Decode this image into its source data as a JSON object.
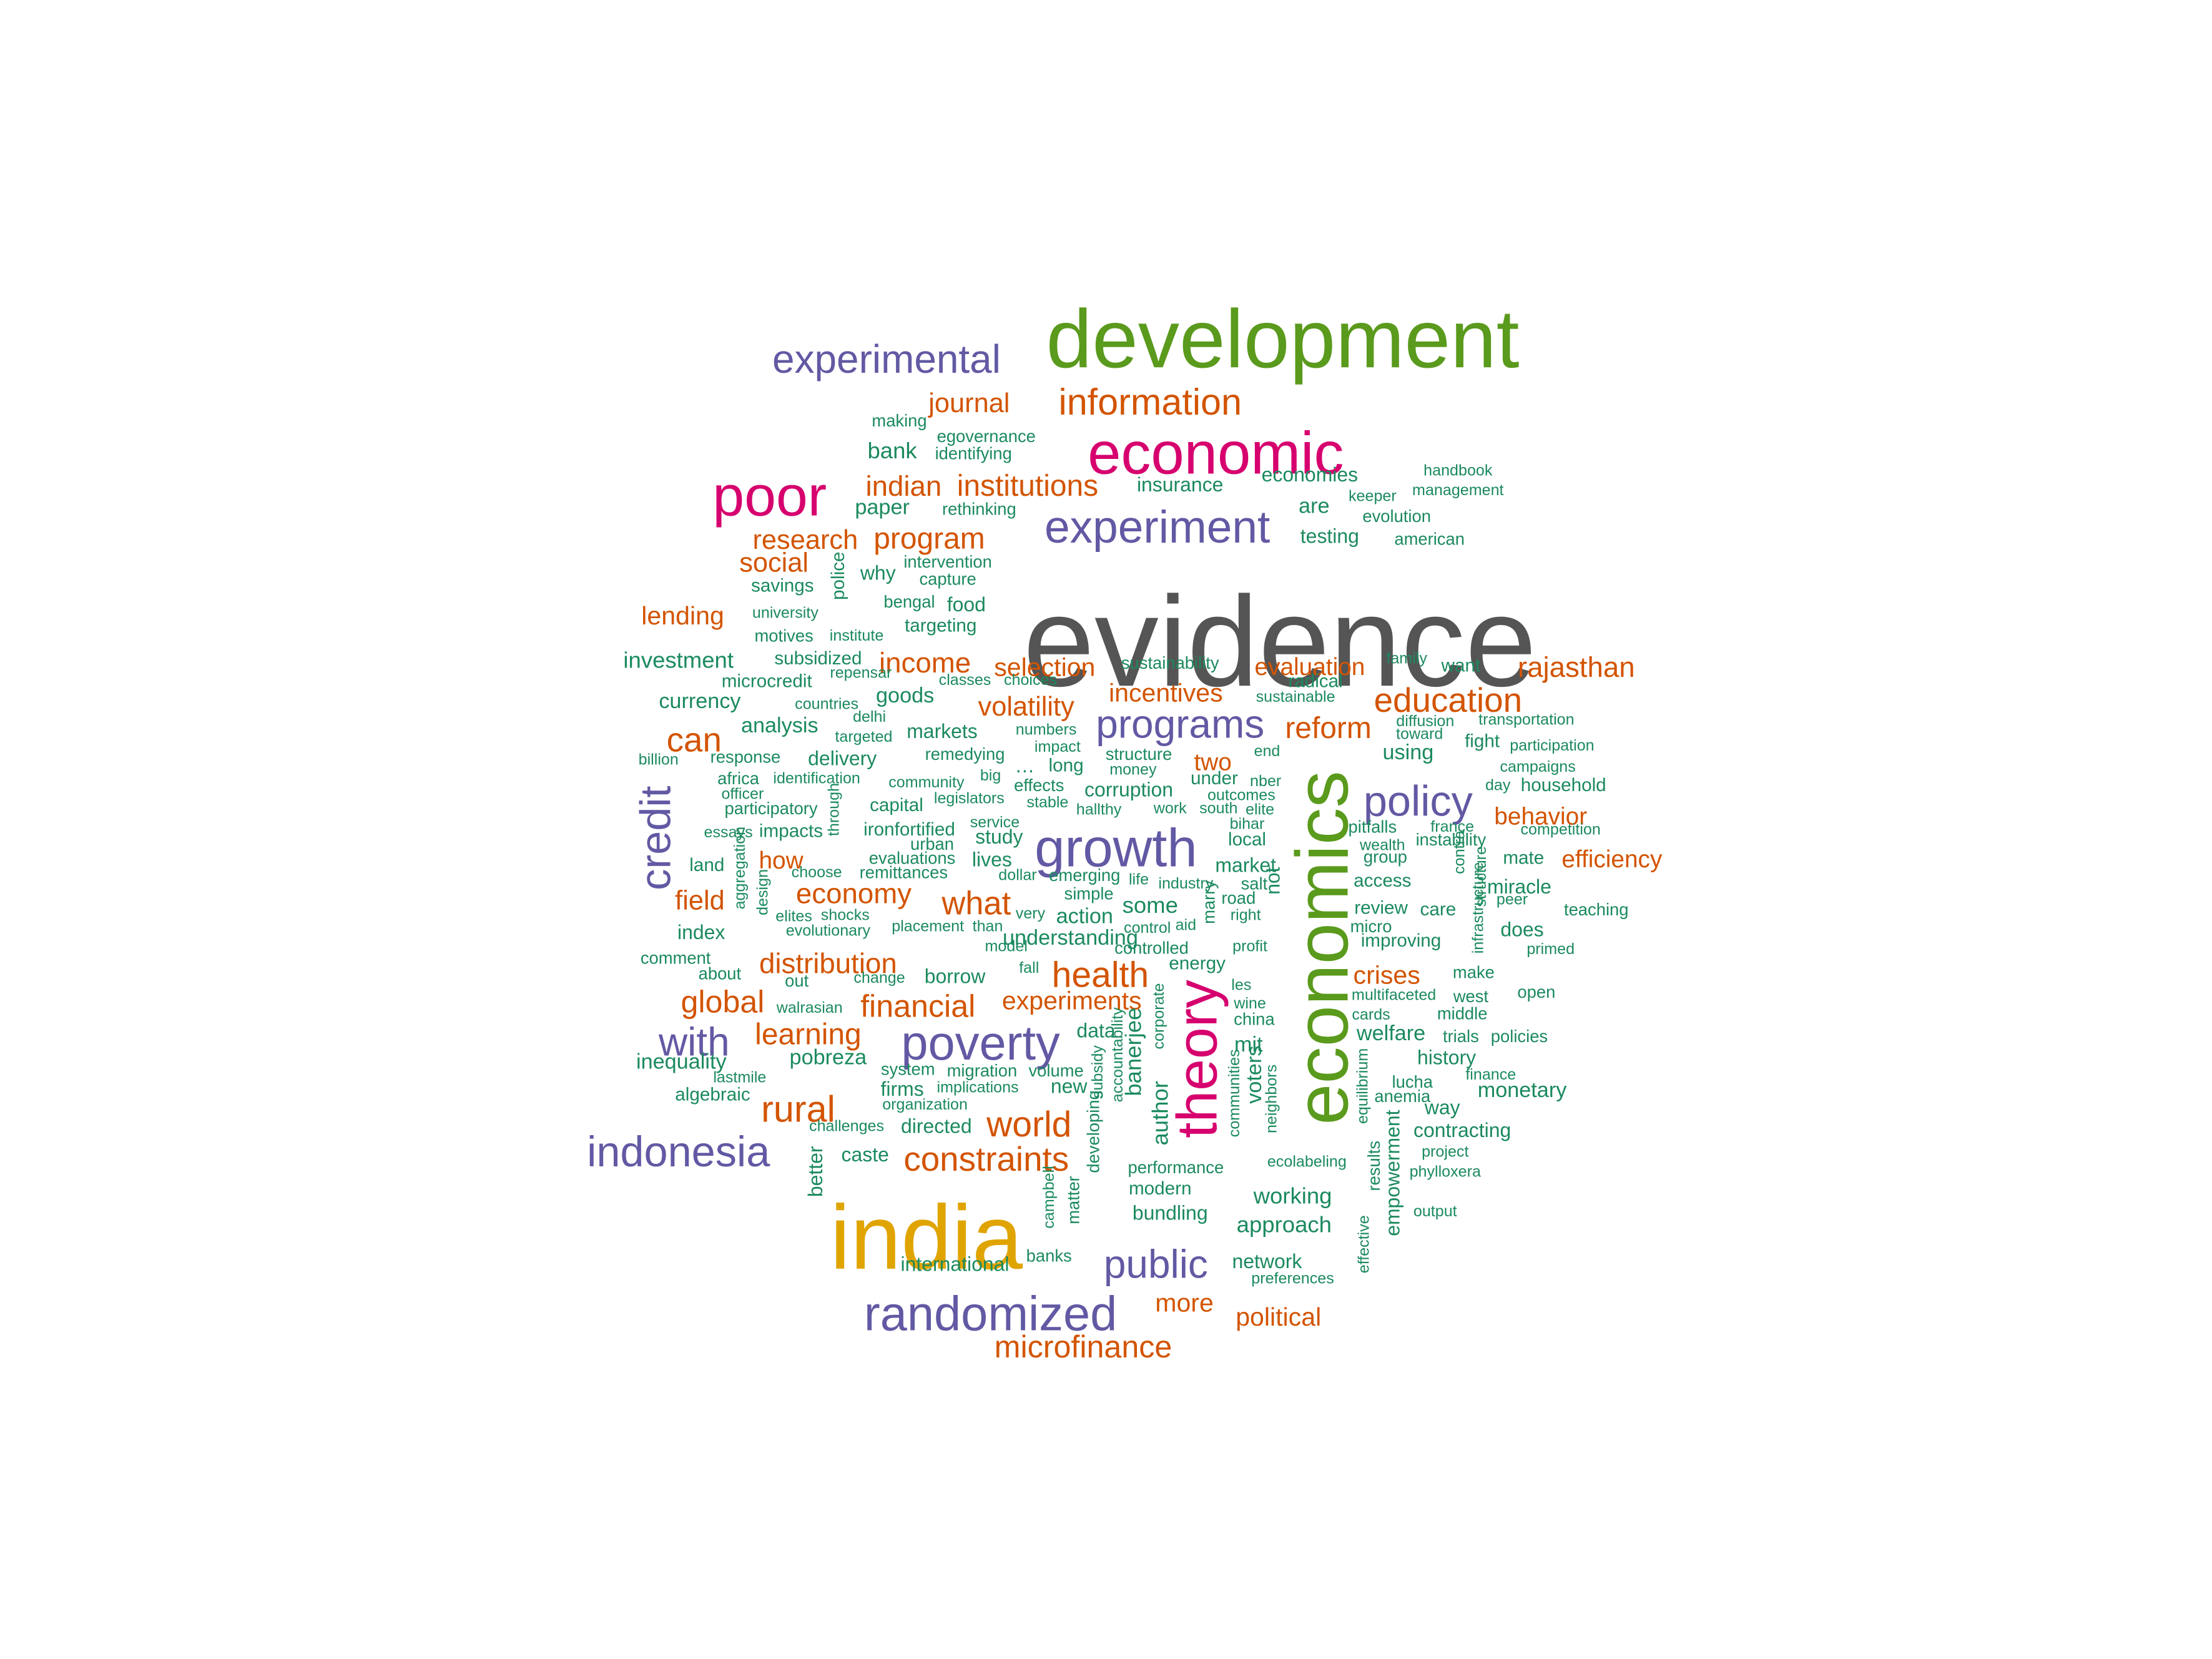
{
  "colors": {
    "gray": "#555555",
    "green": "#5a9a1c",
    "magenta": "#d6006e",
    "orange": "#e0a400",
    "purple": "#6259a4",
    "red": "#d35400",
    "teal": "#1b8a5e"
  },
  "words": [
    {
      "text": "evidence",
      "color": "gray"
    },
    {
      "text": "development",
      "color": "green"
    },
    {
      "text": "economics",
      "color": "green"
    },
    {
      "text": "india",
      "color": "orange"
    },
    {
      "text": "economic",
      "color": "magenta"
    },
    {
      "text": "poor",
      "color": "magenta"
    },
    {
      "text": "theory",
      "color": "magenta"
    },
    {
      "text": "experimental",
      "color": "purple"
    },
    {
      "text": "experiment",
      "color": "purple"
    },
    {
      "text": "growth",
      "color": "purple"
    },
    {
      "text": "programs",
      "color": "purple"
    },
    {
      "text": "policy",
      "color": "purple"
    },
    {
      "text": "poverty",
      "color": "purple"
    },
    {
      "text": "randomized",
      "color": "purple"
    },
    {
      "text": "indonesia",
      "color": "purple"
    },
    {
      "text": "credit",
      "color": "purple"
    },
    {
      "text": "with",
      "color": "purple"
    },
    {
      "text": "public",
      "color": "purple"
    },
    {
      "text": "information",
      "color": "red"
    },
    {
      "text": "journal",
      "color": "red"
    },
    {
      "text": "institutions",
      "color": "red"
    },
    {
      "text": "indian",
      "color": "red"
    },
    {
      "text": "research",
      "color": "red"
    },
    {
      "text": "program",
      "color": "red"
    },
    {
      "text": "social",
      "color": "red"
    },
    {
      "text": "lending",
      "color": "red"
    },
    {
      "text": "income",
      "color": "red"
    },
    {
      "text": "selection",
      "color": "red"
    },
    {
      "text": "evaluation",
      "color": "red"
    },
    {
      "text": "rajasthan",
      "color": "red"
    },
    {
      "text": "education",
      "color": "red"
    },
    {
      "text": "incentives",
      "color": "red"
    },
    {
      "text": "volatility",
      "color": "red"
    },
    {
      "text": "reform",
      "color": "red"
    },
    {
      "text": "can",
      "color": "red"
    },
    {
      "text": "two",
      "color": "red"
    },
    {
      "text": "behavior",
      "color": "red"
    },
    {
      "text": "efficiency",
      "color": "red"
    },
    {
      "text": "how",
      "color": "red"
    },
    {
      "text": "field",
      "color": "red"
    },
    {
      "text": "economy",
      "color": "red"
    },
    {
      "text": "what",
      "color": "red"
    },
    {
      "text": "distribution",
      "color": "red"
    },
    {
      "text": "health",
      "color": "red"
    },
    {
      "text": "crises",
      "color": "red"
    },
    {
      "text": "global",
      "color": "red"
    },
    {
      "text": "financial",
      "color": "red"
    },
    {
      "text": "experiments",
      "color": "red"
    },
    {
      "text": "learning",
      "color": "red"
    },
    {
      "text": "rural",
      "color": "red"
    },
    {
      "text": "world",
      "color": "red"
    },
    {
      "text": "constraints",
      "color": "red"
    },
    {
      "text": "more",
      "color": "red"
    },
    {
      "text": "political",
      "color": "red"
    },
    {
      "text": "microfinance",
      "color": "red"
    },
    {
      "text": "making",
      "color": "teal"
    },
    {
      "text": "egovernance",
      "color": "teal"
    },
    {
      "text": "identifying",
      "color": "teal"
    },
    {
      "text": "bank",
      "color": "teal"
    },
    {
      "text": "insurance",
      "color": "teal"
    },
    {
      "text": "economies",
      "color": "teal"
    },
    {
      "text": "handbook",
      "color": "teal"
    },
    {
      "text": "keeper",
      "color": "teal"
    },
    {
      "text": "management",
      "color": "teal"
    },
    {
      "text": "paper",
      "color": "teal"
    },
    {
      "text": "rethinking",
      "color": "teal"
    },
    {
      "text": "are",
      "color": "teal"
    },
    {
      "text": "evolution",
      "color": "teal"
    },
    {
      "text": "testing",
      "color": "teal"
    },
    {
      "text": "american",
      "color": "teal"
    },
    {
      "text": "intervention",
      "color": "teal"
    },
    {
      "text": "why",
      "color": "teal"
    },
    {
      "text": "capture",
      "color": "teal"
    },
    {
      "text": "savings",
      "color": "teal"
    },
    {
      "text": "police",
      "color": "teal"
    },
    {
      "text": "bengal",
      "color": "teal"
    },
    {
      "text": "food",
      "color": "teal"
    },
    {
      "text": "university",
      "color": "teal"
    },
    {
      "text": "targeting",
      "color": "teal"
    },
    {
      "text": "motives",
      "color": "teal"
    },
    {
      "text": "institute",
      "color": "teal"
    },
    {
      "text": "investment",
      "color": "teal"
    },
    {
      "text": "subsidized",
      "color": "teal"
    },
    {
      "text": "repensar",
      "color": "teal"
    },
    {
      "text": "classes",
      "color": "teal"
    },
    {
      "text": "choices",
      "color": "teal"
    },
    {
      "text": "sustainability",
      "color": "teal"
    },
    {
      "text": "radical",
      "color": "teal"
    },
    {
      "text": "family",
      "color": "teal"
    },
    {
      "text": "want",
      "color": "teal"
    },
    {
      "text": "microcredit",
      "color": "teal"
    },
    {
      "text": "currency",
      "color": "teal"
    },
    {
      "text": "countries",
      "color": "teal"
    },
    {
      "text": "goods",
      "color": "teal"
    },
    {
      "text": "sustainable",
      "color": "teal"
    },
    {
      "text": "delhi",
      "color": "teal"
    },
    {
      "text": "diffusion",
      "color": "teal"
    },
    {
      "text": "transportation",
      "color": "teal"
    },
    {
      "text": "analysis",
      "color": "teal"
    },
    {
      "text": "targeted",
      "color": "teal"
    },
    {
      "text": "markets",
      "color": "teal"
    },
    {
      "text": "numbers",
      "color": "teal"
    },
    {
      "text": "toward",
      "color": "teal"
    },
    {
      "text": "fight",
      "color": "teal"
    },
    {
      "text": "participation",
      "color": "teal"
    },
    {
      "text": "billion",
      "color": "teal"
    },
    {
      "text": "response",
      "color": "teal"
    },
    {
      "text": "delivery",
      "color": "teal"
    },
    {
      "text": "remedying",
      "color": "teal"
    },
    {
      "text": "impact",
      "color": "teal"
    },
    {
      "text": "structure",
      "color": "teal"
    },
    {
      "text": "end",
      "color": "teal"
    },
    {
      "text": "using",
      "color": "teal"
    },
    {
      "text": "campaigns",
      "color": "teal"
    },
    {
      "text": "africa",
      "color": "teal"
    },
    {
      "text": "identification",
      "color": "teal"
    },
    {
      "text": "…",
      "color": "teal"
    },
    {
      "text": "long",
      "color": "teal"
    },
    {
      "text": "money",
      "color": "teal"
    },
    {
      "text": "nber",
      "color": "teal"
    },
    {
      "text": "day",
      "color": "teal"
    },
    {
      "text": "household",
      "color": "teal"
    },
    {
      "text": "officer",
      "color": "teal"
    },
    {
      "text": "community",
      "color": "teal"
    },
    {
      "text": "big",
      "color": "teal"
    },
    {
      "text": "effects",
      "color": "teal"
    },
    {
      "text": "corruption",
      "color": "teal"
    },
    {
      "text": "under",
      "color": "teal"
    },
    {
      "text": "participatory",
      "color": "teal"
    },
    {
      "text": "through",
      "color": "teal"
    },
    {
      "text": "capital",
      "color": "teal"
    },
    {
      "text": "legislators",
      "color": "teal"
    },
    {
      "text": "stable",
      "color": "teal"
    },
    {
      "text": "hallthy",
      "color": "teal"
    },
    {
      "text": "outcomes",
      "color": "teal"
    },
    {
      "text": "work",
      "color": "teal"
    },
    {
      "text": "south",
      "color": "teal"
    },
    {
      "text": "elite",
      "color": "teal"
    },
    {
      "text": "pitfalls",
      "color": "teal"
    },
    {
      "text": "france",
      "color": "teal"
    },
    {
      "text": "competition",
      "color": "teal"
    },
    {
      "text": "essays",
      "color": "teal"
    },
    {
      "text": "impacts",
      "color": "teal"
    },
    {
      "text": "ironfortified",
      "color": "teal"
    },
    {
      "text": "service",
      "color": "teal"
    },
    {
      "text": "bihar",
      "color": "teal"
    },
    {
      "text": "wealth",
      "color": "teal"
    },
    {
      "text": "instability",
      "color": "teal"
    },
    {
      "text": "urban",
      "color": "teal"
    },
    {
      "text": "study",
      "color": "teal"
    },
    {
      "text": "local",
      "color": "teal"
    },
    {
      "text": "group",
      "color": "teal"
    },
    {
      "text": "contra",
      "color": "teal"
    },
    {
      "text": "mate",
      "color": "teal"
    },
    {
      "text": "land",
      "color": "teal"
    },
    {
      "text": "aggregation",
      "color": "teal"
    },
    {
      "text": "choose",
      "color": "teal"
    },
    {
      "text": "evaluations",
      "color": "teal"
    },
    {
      "text": "remittances",
      "color": "teal"
    },
    {
      "text": "lives",
      "color": "teal"
    },
    {
      "text": "dollar",
      "color": "teal"
    },
    {
      "text": "emerging",
      "color": "teal"
    },
    {
      "text": "life",
      "color": "teal"
    },
    {
      "text": "industry",
      "color": "teal"
    },
    {
      "text": "market",
      "color": "teal"
    },
    {
      "text": "salt",
      "color": "teal"
    },
    {
      "text": "access",
      "color": "teal"
    },
    {
      "text": "structure",
      "color": "teal"
    },
    {
      "text": "miracle",
      "color": "teal"
    },
    {
      "text": "design",
      "color": "teal"
    },
    {
      "text": "simple",
      "color": "teal"
    },
    {
      "text": "some",
      "color": "teal"
    },
    {
      "text": "road",
      "color": "teal"
    },
    {
      "text": "right",
      "color": "teal"
    },
    {
      "text": "not",
      "color": "teal"
    },
    {
      "text": "peer",
      "color": "teal"
    },
    {
      "text": "teaching",
      "color": "teal"
    },
    {
      "text": "elites",
      "color": "teal"
    },
    {
      "text": "shocks",
      "color": "teal"
    },
    {
      "text": "very",
      "color": "teal"
    },
    {
      "text": "action",
      "color": "teal"
    },
    {
      "text": "marry",
      "color": "teal"
    },
    {
      "text": "review",
      "color": "teal"
    },
    {
      "text": "care",
      "color": "teal"
    },
    {
      "text": "index",
      "color": "teal"
    },
    {
      "text": "evolutionary",
      "color": "teal"
    },
    {
      "text": "placement",
      "color": "teal"
    },
    {
      "text": "than",
      "color": "teal"
    },
    {
      "text": "control",
      "color": "teal"
    },
    {
      "text": "aid",
      "color": "teal"
    },
    {
      "text": "micro",
      "color": "teal"
    },
    {
      "text": "infrastructure",
      "color": "teal"
    },
    {
      "text": "does",
      "color": "teal"
    },
    {
      "text": "model",
      "color": "teal"
    },
    {
      "text": "understanding",
      "color": "teal"
    },
    {
      "text": "controlled",
      "color": "teal"
    },
    {
      "text": "profit",
      "color": "teal"
    },
    {
      "text": "improving",
      "color": "teal"
    },
    {
      "text": "primed",
      "color": "teal"
    },
    {
      "text": "comment",
      "color": "teal"
    },
    {
      "text": "energy",
      "color": "teal"
    },
    {
      "text": "about",
      "color": "teal"
    },
    {
      "text": "fall",
      "color": "teal"
    },
    {
      "text": "change",
      "color": "teal"
    },
    {
      "text": "borrow",
      "color": "teal"
    },
    {
      "text": "make",
      "color": "teal"
    },
    {
      "text": "out",
      "color": "teal"
    },
    {
      "text": "les",
      "color": "teal"
    },
    {
      "text": "multifaceted",
      "color": "teal"
    },
    {
      "text": "west",
      "color": "teal"
    },
    {
      "text": "open",
      "color": "teal"
    },
    {
      "text": "wine",
      "color": "teal"
    },
    {
      "text": "walrasian",
      "color": "teal"
    },
    {
      "text": "corporate",
      "color": "teal"
    },
    {
      "text": "china",
      "color": "teal"
    },
    {
      "text": "cards",
      "color": "teal"
    },
    {
      "text": "middle",
      "color": "teal"
    },
    {
      "text": "data",
      "color": "teal"
    },
    {
      "text": "banerjee",
      "color": "teal"
    },
    {
      "text": "welfare",
      "color": "teal"
    },
    {
      "text": "trials",
      "color": "teal"
    },
    {
      "text": "policies",
      "color": "teal"
    },
    {
      "text": "mit",
      "color": "teal"
    },
    {
      "text": "pobreza",
      "color": "teal"
    },
    {
      "text": "accountability",
      "color": "teal"
    },
    {
      "text": "inequality",
      "color": "teal"
    },
    {
      "text": "system",
      "color": "teal"
    },
    {
      "text": "migration",
      "color": "teal"
    },
    {
      "text": "volume",
      "color": "teal"
    },
    {
      "text": "history",
      "color": "teal"
    },
    {
      "text": "lastmile",
      "color": "teal"
    },
    {
      "text": "subsidy",
      "color": "teal"
    },
    {
      "text": "communities",
      "color": "teal"
    },
    {
      "text": "voters",
      "color": "teal"
    },
    {
      "text": "equilibrium",
      "color": "teal"
    },
    {
      "text": "lucha",
      "color": "teal"
    },
    {
      "text": "finance",
      "color": "teal"
    },
    {
      "text": "firms",
      "color": "teal"
    },
    {
      "text": "implications",
      "color": "teal"
    },
    {
      "text": "new",
      "color": "teal"
    },
    {
      "text": "anemia",
      "color": "teal"
    },
    {
      "text": "monetary",
      "color": "teal"
    },
    {
      "text": "algebraic",
      "color": "teal"
    },
    {
      "text": "organization",
      "color": "teal"
    },
    {
      "text": "neighbors",
      "color": "teal"
    },
    {
      "text": "way",
      "color": "teal"
    },
    {
      "text": "challenges",
      "color": "teal"
    },
    {
      "text": "directed",
      "color": "teal"
    },
    {
      "text": "author",
      "color": "teal"
    },
    {
      "text": "contracting",
      "color": "teal"
    },
    {
      "text": "caste",
      "color": "teal"
    },
    {
      "text": "developing",
      "color": "teal"
    },
    {
      "text": "results",
      "color": "teal"
    },
    {
      "text": "project",
      "color": "teal"
    },
    {
      "text": "performance",
      "color": "teal"
    },
    {
      "text": "ecolabeling",
      "color": "teal"
    },
    {
      "text": "phylloxera",
      "color": "teal"
    },
    {
      "text": "better",
      "color": "teal"
    },
    {
      "text": "modern",
      "color": "teal"
    },
    {
      "text": "working",
      "color": "teal"
    },
    {
      "text": "empowerment",
      "color": "teal"
    },
    {
      "text": "campbell",
      "color": "teal"
    },
    {
      "text": "matter",
      "color": "teal"
    },
    {
      "text": "bundling",
      "color": "teal"
    },
    {
      "text": "output",
      "color": "teal"
    },
    {
      "text": "approach",
      "color": "teal"
    },
    {
      "text": "effective",
      "color": "teal"
    },
    {
      "text": "banks",
      "color": "teal"
    },
    {
      "text": "network",
      "color": "teal"
    },
    {
      "text": "international",
      "color": "teal"
    },
    {
      "text": "preferences",
      "color": "teal"
    }
  ]
}
